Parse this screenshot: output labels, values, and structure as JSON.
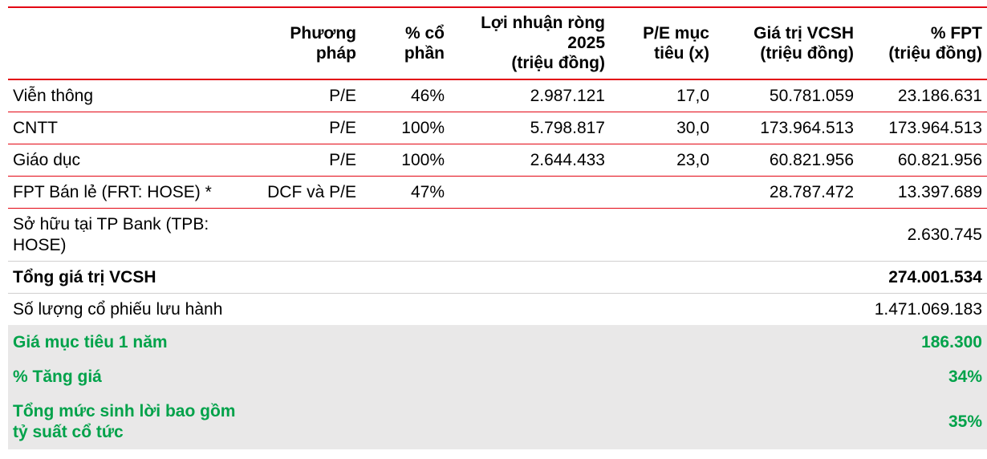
{
  "table": {
    "columns": [
      {
        "label": ""
      },
      {
        "label": "Phương\npháp"
      },
      {
        "label": "% cổ\nphần"
      },
      {
        "label": "Lợi nhuận ròng\n2025\n(triệu đồng)"
      },
      {
        "label": "P/E mục\ntiêu (x)"
      },
      {
        "label": "Giá trị VCSH\n(triệu đồng)"
      },
      {
        "label": "% FPT\n(triệu đồng)"
      }
    ],
    "rows": [
      {
        "cells": [
          "Viễn thông",
          "P/E",
          "46%",
          "2.987.121",
          "17,0",
          "50.781.059",
          "23.186.631"
        ],
        "class": "bb"
      },
      {
        "cells": [
          "CNTT",
          "P/E",
          "100%",
          "5.798.817",
          "30,0",
          "173.964.513",
          "173.964.513"
        ],
        "class": "bb"
      },
      {
        "cells": [
          "Giáo dục",
          "P/E",
          "100%",
          "2.644.433",
          "23,0",
          "60.821.956",
          "60.821.956"
        ],
        "class": "bb"
      },
      {
        "cells": [
          "FPT Bán lẻ (FRT: HOSE) *",
          "DCF và P/E",
          "47%",
          "",
          "",
          "28.787.472",
          "13.397.689"
        ],
        "class": "bb"
      },
      {
        "cells": [
          "Sở hữu tại TP Bank (TPB: HOSE)",
          "",
          "",
          "",
          "",
          "",
          "2.630.745"
        ],
        "class": "sep"
      },
      {
        "cells": [
          "Tổng giá trị VCSH",
          "",
          "",
          "",
          "",
          "",
          "274.001.534"
        ],
        "class": "bold sep"
      },
      {
        "cells": [
          "Số lượng cổ phiếu lưu hành",
          "",
          "",
          "",
          "",
          "",
          "1.471.069.183"
        ],
        "class": "section"
      },
      {
        "cells": [
          "Giá mục tiêu 1 năm",
          "",
          "",
          "",
          "",
          "",
          "186.300"
        ],
        "class": "green shade padrow"
      },
      {
        "cells": [
          "% Tăng giá",
          "",
          "",
          "",
          "",
          "",
          "34%"
        ],
        "class": "green shade padrow"
      },
      {
        "cells": [
          "Tổng mức sinh lời bao gồm tỷ suất cổ tức",
          "",
          "",
          "",
          "",
          "",
          "35%"
        ],
        "class": "green shade padrow"
      }
    ]
  },
  "style": {
    "accent": "#e30613",
    "green": "#00a24a",
    "shade": "#e9e8e8",
    "grey_sep": "#d0cfcf"
  }
}
